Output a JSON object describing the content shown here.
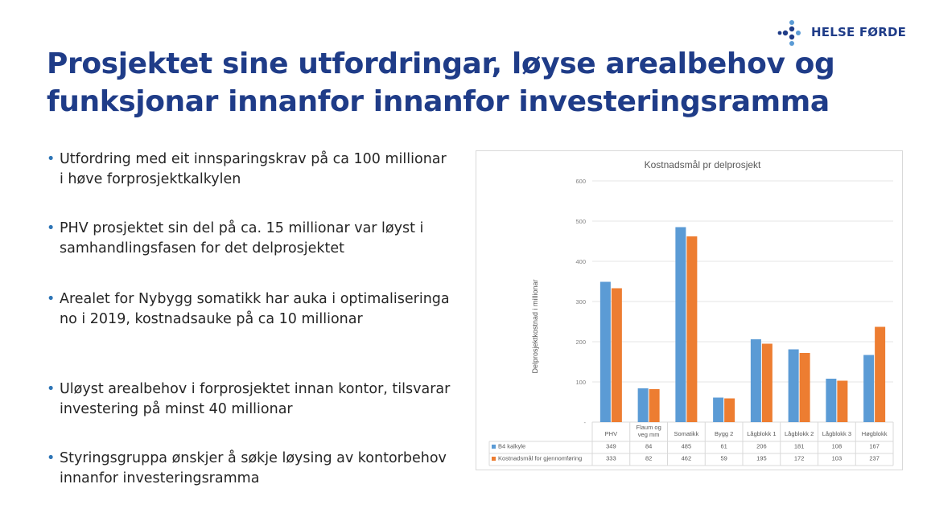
{
  "logo": {
    "icon": "dots-cross-icon",
    "text": "HELSE FØRDE",
    "color": "#1f3c88"
  },
  "title": "Prosjektet sine utfordringar, løyse arealbehov og funksjonar innanfor innanfor investeringsramma",
  "bullets": [
    "Utfordring med eit innsparingskrav på ca 100 millionar i høve forprosjektkalkylen",
    "PHV prosjektet sin del på ca. 15 millionar var løyst i samhandlingsfasen for det delprosjektet",
    "Arealet for Nybygg somatikk har auka i optimaliseringa no i 2019, kostnadsauke på ca 10 millionar",
    "Uløyst arealbehov i forprosjektet innan kontor, tilsvarar investering på minst 40 millionar",
    "Styringsgruppa ønskjer å søkje løysing av kontorbehov innanfor investeringsramma"
  ],
  "chart_data": {
    "type": "bar",
    "title": "Kostnadsmål pr delprosjekt",
    "ylabel": "Delprosjektkostnad i millionar",
    "xlabel": "",
    "ylim": [
      0,
      600
    ],
    "yticks": [
      "-",
      "100",
      "200",
      "300",
      "400",
      "500",
      "600"
    ],
    "categories": [
      "PHV",
      "Flaum og veg mm",
      "Somatikk",
      "Bygg 2",
      "Lågblokk 1",
      "Lågblokk 2",
      "Lågblokk 3",
      "Høgblokk"
    ],
    "series": [
      {
        "name": "B4 kalkyle",
        "color": "#5b9bd5",
        "values": [
          349,
          84,
          485,
          61,
          206,
          181,
          108,
          167
        ]
      },
      {
        "name": "Kostnadsmål for gjennomføring",
        "color": "#ed7d31",
        "values": [
          333,
          82,
          462,
          59,
          195,
          172,
          103,
          237
        ]
      }
    ],
    "grid": true,
    "legend": "data-table"
  }
}
